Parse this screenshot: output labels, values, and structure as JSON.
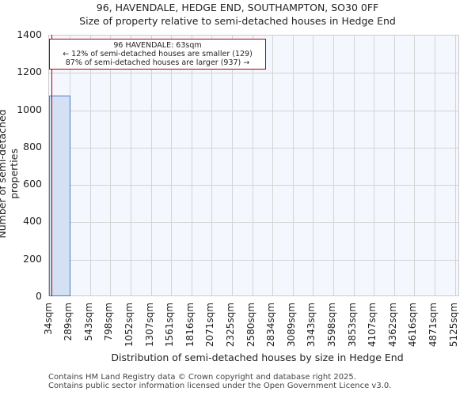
{
  "title_line1": "96, HAVENDALE, HEDGE END, SOUTHAMPTON, SO30 0FF",
  "title_line2": "Size of property relative to semi-detached houses in Hedge End",
  "annotation": {
    "line1": "96 HAVENDALE: 63sqm",
    "line2": "← 12% of semi-detached houses are smaller (129)",
    "line3": "87% of semi-detached houses are larger (937) →"
  },
  "footer": {
    "line1": "Contains HM Land Registry data © Crown copyright and database right 2025.",
    "line2": "Contains public sector information licensed under the Open Government Licence v3.0."
  },
  "colors": {
    "bar_fill": "#d4e0f3",
    "bar_edge": "#4a7fc0",
    "marker": "#c00000",
    "plot_bg": "#f4f7fe"
  },
  "chart_data": {
    "type": "bar",
    "title": "96, HAVENDALE, HEDGE END, SOUTHAMPTON, SO30 0FF — Size of property relative to semi-detached houses in Hedge End",
    "xlabel": "Distribution of semi-detached houses by size in Hedge End",
    "ylabel": "Number of semi-detached properties",
    "categories": [
      "34sqm",
      "289sqm",
      "543sqm",
      "798sqm",
      "1052sqm",
      "1307sqm",
      "1561sqm",
      "1816sqm",
      "2071sqm",
      "2325sqm",
      "2580sqm",
      "2834sqm",
      "3089sqm",
      "3343sqm",
      "3598sqm",
      "3853sqm",
      "4107sqm",
      "4362sqm",
      "4616sqm",
      "4871sqm",
      "5125sqm"
    ],
    "values": [
      1075,
      0,
      0,
      0,
      0,
      0,
      0,
      0,
      0,
      0,
      0,
      0,
      0,
      0,
      0,
      0,
      0,
      0,
      0,
      0
    ],
    "yticks": [
      0,
      200,
      400,
      600,
      800,
      1000,
      1200,
      1400
    ],
    "ylim": [
      0,
      1400
    ],
    "grid": true,
    "marker": {
      "value_sqm": 63,
      "label": "96 HAVENDALE: 63sqm"
    }
  }
}
